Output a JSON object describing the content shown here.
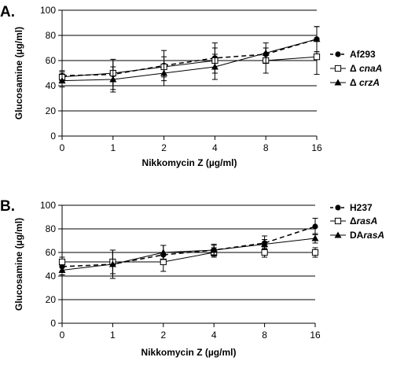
{
  "chart_data": [
    {
      "type": "line",
      "panel_label": "A.",
      "xlabel": "Nikkomycin Z (µg/ml)",
      "ylabel": "Glucosamine (µg/ml)",
      "categories": [
        "0",
        "1",
        "2",
        "4",
        "8",
        "16"
      ],
      "ylim": [
        0,
        100
      ],
      "yticks": [
        "0",
        "20",
        "40",
        "60",
        "80",
        "100"
      ],
      "grid": "horizontal",
      "legend_position": "right",
      "series": [
        {
          "name": "Af293",
          "name_prefix": "",
          "name_italic": "",
          "marker": "circle",
          "dash": "dashed",
          "values": [
            48,
            49,
            56,
            62,
            65,
            77
          ],
          "err": [
            4,
            12,
            12,
            12,
            5,
            10
          ]
        },
        {
          "name": "Δ cnaA",
          "name_prefix": "Δ ",
          "name_italic": "cnaA",
          "marker": "square",
          "dash": "solid",
          "values": [
            47,
            50,
            55,
            60,
            60,
            63
          ],
          "err": [
            4,
            10,
            8,
            10,
            10,
            14
          ]
        },
        {
          "name": "Δ crzA",
          "name_prefix": "Δ ",
          "name_italic": "crzA",
          "marker": "triangle",
          "dash": "solid",
          "values": [
            44,
            45,
            50,
            55,
            66,
            77
          ],
          "err": [
            5,
            10,
            10,
            10,
            8,
            10
          ]
        }
      ]
    },
    {
      "type": "line",
      "panel_label": "B.",
      "xlabel": "Nikkomycin Z (µg/ml)",
      "ylabel": "Glucosamine (µg/ml)",
      "categories": [
        "0",
        "1",
        "2",
        "4",
        "8",
        "16"
      ],
      "ylim": [
        0,
        100
      ],
      "yticks": [
        "0",
        "20",
        "40",
        "60",
        "80",
        "100"
      ],
      "grid": "horizontal",
      "legend_position": "right",
      "series": [
        {
          "name": "H237",
          "name_prefix": "",
          "name_italic": "",
          "marker": "circle",
          "dash": "dashed",
          "values": [
            48,
            50,
            58,
            62,
            68,
            82
          ],
          "err": [
            4,
            12,
            8,
            5,
            6,
            7
          ]
        },
        {
          "name": "ΔrasA",
          "name_prefix": "Δ",
          "name_italic": "rasA",
          "marker": "square",
          "dash": "solid",
          "values": [
            52,
            52,
            52,
            60,
            60,
            60
          ],
          "err": [
            4,
            10,
            8,
            4,
            4,
            4
          ]
        },
        {
          "name": "DArasA",
          "name_prefix": "DA",
          "name_italic": "rasA",
          "marker": "triangle",
          "dash": "solid",
          "values": [
            45,
            50,
            60,
            62,
            67,
            72
          ],
          "err": [
            4,
            10,
            6,
            4,
            4,
            4
          ]
        }
      ]
    }
  ]
}
